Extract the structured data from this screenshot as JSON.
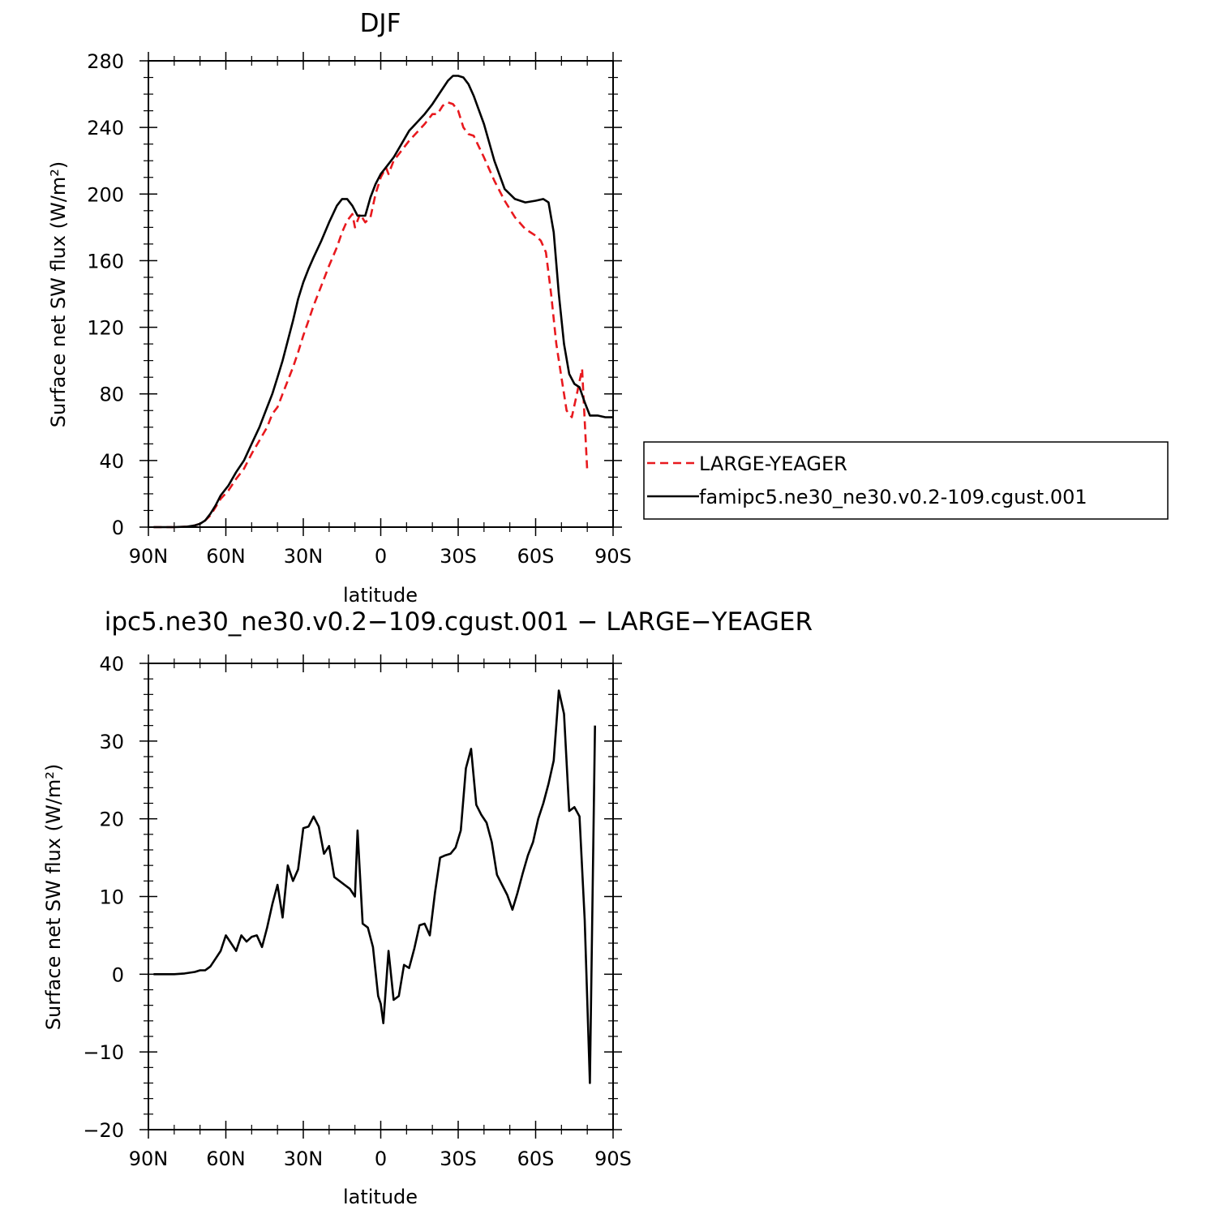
{
  "chart_data": [
    {
      "type": "line",
      "title": "DJF",
      "xlabel": "latitude",
      "ylabel": "Surface net SW flux (W/m²)",
      "xlim": [
        -90,
        90
      ],
      "ylim": [
        0,
        280
      ],
      "x_ticks": [
        -90,
        -60,
        -30,
        0,
        30,
        60,
        90
      ],
      "x_tick_labels": [
        "90N",
        "60N",
        "30N",
        "0",
        "30S",
        "60S",
        "90S"
      ],
      "y_ticks": [
        0,
        40,
        80,
        120,
        160,
        200,
        240,
        280
      ],
      "y_tick_labels": [
        "0",
        "40",
        "80",
        "120",
        "160",
        "200",
        "240",
        "280"
      ],
      "grid": false,
      "legend_position": "right",
      "series": [
        {
          "name": "LARGE-YEAGER",
          "color": "#e8191e",
          "dash": "dashed",
          "points": [
            [
              -88,
              0
            ],
            [
              -80,
              0
            ],
            [
              -75,
              0.3
            ],
            [
              -72,
              1
            ],
            [
              -70,
              2
            ],
            [
              -68,
              4
            ],
            [
              -66,
              7
            ],
            [
              -64,
              12
            ],
            [
              -62,
              17
            ],
            [
              -59,
              22
            ],
            [
              -56,
              29
            ],
            [
              -53,
              35
            ],
            [
              -50,
              44
            ],
            [
              -47,
              52
            ],
            [
              -44,
              60
            ],
            [
              -42,
              68
            ],
            [
              -40,
              72
            ],
            [
              -38,
              80
            ],
            [
              -36,
              88
            ],
            [
              -34,
              96
            ],
            [
              -32,
              105
            ],
            [
              -30,
              115
            ],
            [
              -28,
              124
            ],
            [
              -26,
              133
            ],
            [
              -23,
              145
            ],
            [
              -20,
              157
            ],
            [
              -17,
              168
            ],
            [
              -15,
              177
            ],
            [
              -13,
              184
            ],
            [
              -11,
              188
            ],
            [
              -10,
              180
            ],
            [
              -8,
              188
            ],
            [
              -6,
              183
            ],
            [
              -4,
              186
            ],
            [
              -2,
              200
            ],
            [
              0,
              210
            ],
            [
              2,
              216
            ],
            [
              3,
              212
            ],
            [
              5,
              220
            ],
            [
              8,
              226
            ],
            [
              11,
              232
            ],
            [
              14,
              237
            ],
            [
              17,
              242
            ],
            [
              20,
              248
            ],
            [
              22,
              248
            ],
            [
              24,
              253
            ],
            [
              26,
              255
            ],
            [
              28,
              254
            ],
            [
              30,
              250
            ],
            [
              32,
              240
            ],
            [
              34,
              236
            ],
            [
              36,
              235
            ],
            [
              40,
              222
            ],
            [
              44,
              208
            ],
            [
              48,
              196
            ],
            [
              52,
              186
            ],
            [
              56,
              179
            ],
            [
              60,
              175
            ],
            [
              62,
              172
            ],
            [
              64,
              165
            ],
            [
              66,
              140
            ],
            [
              68,
              110
            ],
            [
              70,
              90
            ],
            [
              72,
              70
            ],
            [
              74,
              66
            ],
            [
              76,
              80
            ],
            [
              78,
              95
            ],
            [
              80,
              33
            ]
          ]
        },
        {
          "name": "famipc5.ne30_ne30.v0.2-109.cgust.001",
          "color": "#000000",
          "dash": "solid",
          "points": [
            [
              -88,
              0
            ],
            [
              -80,
              0
            ],
            [
              -75,
              0.3
            ],
            [
              -72,
              1
            ],
            [
              -70,
              2
            ],
            [
              -68,
              4
            ],
            [
              -66,
              8
            ],
            [
              -64,
              13
            ],
            [
              -62,
              19
            ],
            [
              -59,
              25
            ],
            [
              -56,
              33
            ],
            [
              -53,
              40
            ],
            [
              -50,
              50
            ],
            [
              -47,
              60
            ],
            [
              -44,
              72
            ],
            [
              -42,
              80
            ],
            [
              -40,
              90
            ],
            [
              -38,
              100
            ],
            [
              -36,
              112
            ],
            [
              -34,
              124
            ],
            [
              -32,
              137
            ],
            [
              -30,
              147
            ],
            [
              -28,
              155
            ],
            [
              -26,
              162
            ],
            [
              -23,
              172
            ],
            [
              -20,
              183
            ],
            [
              -17,
              193
            ],
            [
              -15,
              197
            ],
            [
              -13,
              197
            ],
            [
              -11,
              193
            ],
            [
              -9,
              187
            ],
            [
              -6,
              187
            ],
            [
              -4,
              198
            ],
            [
              -2,
              206
            ],
            [
              0,
              212
            ],
            [
              2,
              216
            ],
            [
              5,
              222
            ],
            [
              8,
              230
            ],
            [
              11,
              238
            ],
            [
              14,
              243
            ],
            [
              17,
              248
            ],
            [
              20,
              254
            ],
            [
              23,
              261
            ],
            [
              26,
              268
            ],
            [
              28,
              271
            ],
            [
              30,
              271
            ],
            [
              32,
              270
            ],
            [
              34,
              266
            ],
            [
              36,
              259
            ],
            [
              40,
              242
            ],
            [
              44,
              220
            ],
            [
              48,
              203
            ],
            [
              52,
              197
            ],
            [
              56,
              195
            ],
            [
              60,
              196
            ],
            [
              63,
              197
            ],
            [
              65,
              195
            ],
            [
              67,
              177
            ],
            [
              69,
              140
            ],
            [
              71,
              110
            ],
            [
              73,
              92
            ],
            [
              75,
              86
            ],
            [
              77,
              84
            ],
            [
              79,
              75
            ],
            [
              81,
              67
            ],
            [
              84,
              67
            ],
            [
              87,
              66
            ],
            [
              90,
              66
            ]
          ]
        }
      ]
    },
    {
      "type": "line",
      "title": "ipc5.ne30_ne30.v0.2−109.cgust.001 − LARGE−YEAGER",
      "xlabel": "latitude",
      "ylabel": "Surface net SW flux (W/m²)",
      "xlim": [
        -90,
        90
      ],
      "ylim": [
        -20,
        40
      ],
      "x_ticks": [
        -90,
        -60,
        -30,
        0,
        30,
        60,
        90
      ],
      "x_tick_labels": [
        "90N",
        "60N",
        "30N",
        "0",
        "30S",
        "60S",
        "90S"
      ],
      "y_ticks": [
        -20,
        -10,
        0,
        10,
        20,
        30,
        40
      ],
      "y_tick_labels": [
        "−20",
        "−10",
        "0",
        "10",
        "20",
        "30",
        "40"
      ],
      "grid": false,
      "series": [
        {
          "color": "#000000",
          "points": [
            [
              -88,
              0
            ],
            [
              -80,
              0
            ],
            [
              -76,
              0.1
            ],
            [
              -72,
              0.3
            ],
            [
              -70,
              0.5
            ],
            [
              -68,
              0.5
            ],
            [
              -66,
              1
            ],
            [
              -64,
              2
            ],
            [
              -62,
              3
            ],
            [
              -60,
              5
            ],
            [
              -58,
              4
            ],
            [
              -56,
              3
            ],
            [
              -54,
              5
            ],
            [
              -52,
              4.2
            ],
            [
              -50,
              4.8
            ],
            [
              -48,
              5
            ],
            [
              -46,
              3.5
            ],
            [
              -44,
              6
            ],
            [
              -42,
              9
            ],
            [
              -40,
              11.5
            ],
            [
              -38,
              7.3
            ],
            [
              -36,
              14
            ],
            [
              -34,
              12
            ],
            [
              -32,
              13.5
            ],
            [
              -30,
              18.8
            ],
            [
              -28,
              19
            ],
            [
              -26,
              20.3
            ],
            [
              -24,
              19
            ],
            [
              -22,
              15.5
            ],
            [
              -20,
              16.5
            ],
            [
              -18,
              12.5
            ],
            [
              -16,
              12
            ],
            [
              -14,
              11.5
            ],
            [
              -12,
              11
            ],
            [
              -10,
              10
            ],
            [
              -9,
              18.5
            ],
            [
              -7,
              6.5
            ],
            [
              -5,
              6
            ],
            [
              -3,
              3.5
            ],
            [
              -1,
              -2.8
            ],
            [
              0,
              -3.8
            ],
            [
              1,
              -6.3
            ],
            [
              3,
              3
            ],
            [
              5,
              -3.3
            ],
            [
              7,
              -2.8
            ],
            [
              9,
              1.2
            ],
            [
              11,
              0.8
            ],
            [
              13,
              3.3
            ],
            [
              15,
              6.3
            ],
            [
              17,
              6.5
            ],
            [
              19,
              5
            ],
            [
              21,
              10.5
            ],
            [
              23,
              15
            ],
            [
              25,
              15.3
            ],
            [
              27,
              15.5
            ],
            [
              29,
              16.3
            ],
            [
              31,
              18.5
            ],
            [
              33,
              26.5
            ],
            [
              35,
              29
            ],
            [
              37,
              21.8
            ],
            [
              39,
              20.5
            ],
            [
              41,
              19.5
            ],
            [
              43,
              17
            ],
            [
              45,
              12.8
            ],
            [
              47,
              11.5
            ],
            [
              49,
              10.2
            ],
            [
              51,
              8.3
            ],
            [
              53,
              10.5
            ],
            [
              55,
              13
            ],
            [
              57,
              15.3
            ],
            [
              59,
              17
            ],
            [
              61,
              20
            ],
            [
              63,
              22
            ],
            [
              65,
              24.5
            ],
            [
              67,
              27.5
            ],
            [
              69,
              36.5
            ],
            [
              71,
              33.5
            ],
            [
              73,
              21
            ],
            [
              75,
              21.5
            ],
            [
              77,
              20.3
            ],
            [
              79,
              7
            ],
            [
              81,
              -14
            ],
            [
              83,
              32
            ]
          ]
        }
      ]
    }
  ]
}
